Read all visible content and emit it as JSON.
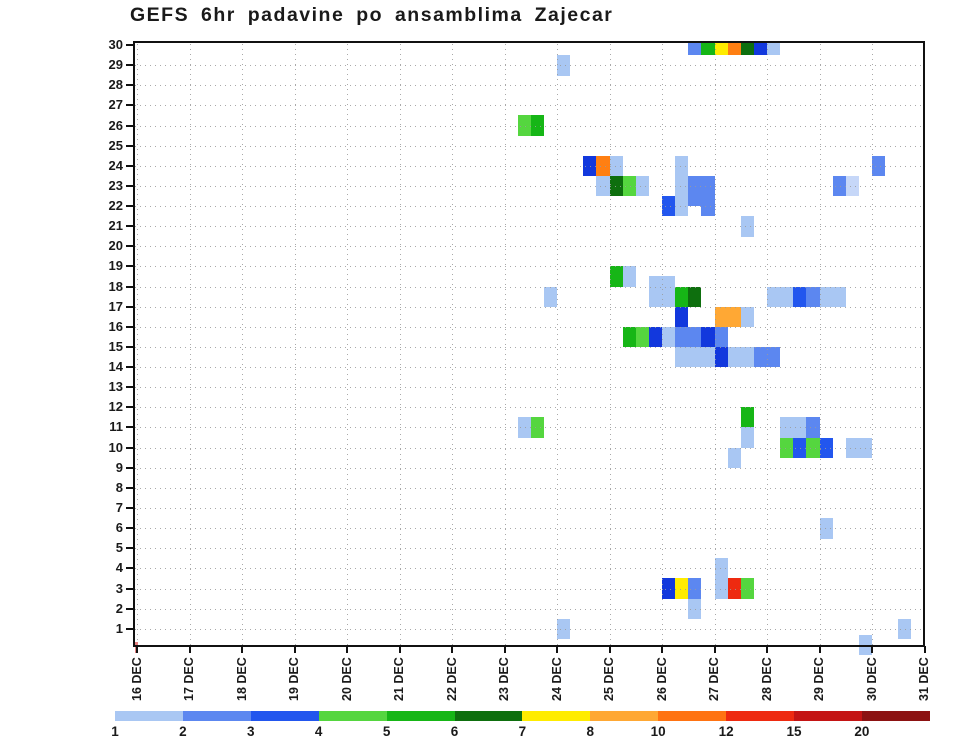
{
  "title": "GEFS 6hr padavine po ansamblima Zajecar",
  "chart_data": {
    "type": "heatmap",
    "title": "GEFS 6hr padavine po ansamblima Zajecar",
    "x_axis": {
      "labels": [
        "16 DEC",
        "17 DEC",
        "18 DEC",
        "19 DEC",
        "20 DEC",
        "21 DEC",
        "22 DEC",
        "23 DEC",
        "24 DEC",
        "25 DEC",
        "26 DEC",
        "27 DEC",
        "28 DEC",
        "29 DEC",
        "30 DEC",
        "31 DEC"
      ],
      "slot_hours": 6,
      "slots_per_day": 4
    },
    "y_axis": {
      "meaning": "ensemble member",
      "tick_labels": [
        "1",
        "2",
        "3",
        "4",
        "5",
        "6",
        "7",
        "8",
        "9",
        "10",
        "11",
        "12",
        "13",
        "14",
        "15",
        "16",
        "17",
        "18",
        "19",
        "20",
        "21",
        "22",
        "23",
        "24",
        "25",
        "26",
        "27",
        "28",
        "29",
        "30"
      ],
      "range": [
        1,
        30
      ]
    },
    "grid": "dotted",
    "legend_position": "bottom",
    "colorbar": {
      "labels": [
        "1",
        "2",
        "3",
        "4",
        "5",
        "6",
        "7",
        "8",
        "10",
        "12",
        "15",
        "20"
      ],
      "colors": [
        "#a9c7f3",
        "#5c87f0",
        "#2256ee",
        "#55d63f",
        "#16b616",
        "#0e6f0e",
        "#ffec00",
        "#ffa834",
        "#ff7312",
        "#ee2a10",
        "#c41414",
        "#8c1212"
      ]
    },
    "palette": {
      "lb": "#a9c7f3",
      "pb": "#c6d7f8",
      "mb": "#5c87f0",
      "b": "#2256ee",
      "db": "#1238dd",
      "lg": "#55d63f",
      "g": "#16b616",
      "dg": "#0e6f0e",
      "y": "#ffec00",
      "o": "#ffa834",
      "o2": "#ff7f12",
      "r": "#ee2a10"
    },
    "cells_format": [
      "member_row",
      "six_hour_slot_from_16DEC00",
      "palette_key"
    ],
    "cells": [
      [
        30,
        42,
        "mb"
      ],
      [
        30,
        43,
        "g"
      ],
      [
        30,
        44,
        "y"
      ],
      [
        30,
        45,
        "o2"
      ],
      [
        30,
        46,
        "dg"
      ],
      [
        30,
        47,
        "db"
      ],
      [
        30,
        48,
        "lb"
      ],
      [
        29,
        32,
        "lb"
      ],
      [
        26,
        29,
        "lg"
      ],
      [
        26,
        30,
        "g"
      ],
      [
        24,
        34,
        "db"
      ],
      [
        24,
        35,
        "o2"
      ],
      [
        24,
        36,
        "lb"
      ],
      [
        24,
        41,
        "lb"
      ],
      [
        24,
        56,
        "mb"
      ],
      [
        23,
        35,
        "lb"
      ],
      [
        23,
        36,
        "dg"
      ],
      [
        23,
        37,
        "lg"
      ],
      [
        23,
        38,
        "lb"
      ],
      [
        23,
        41,
        "lb"
      ],
      [
        23,
        42,
        "mb"
      ],
      [
        23,
        43,
        "mb"
      ],
      [
        23,
        53,
        "mb"
      ],
      [
        23,
        54,
        "pb"
      ],
      [
        22.5,
        42,
        "mb"
      ],
      [
        22.5,
        43,
        "mb"
      ],
      [
        22,
        40,
        "b"
      ],
      [
        22,
        41,
        "lb"
      ],
      [
        22,
        43,
        "mb"
      ],
      [
        21,
        46,
        "lb"
      ],
      [
        18.5,
        36,
        "g"
      ],
      [
        18.5,
        37,
        "lb"
      ],
      [
        18,
        39,
        "lb"
      ],
      [
        18,
        40,
        "lb"
      ],
      [
        17.5,
        31,
        "lb"
      ],
      [
        17.5,
        39,
        "lb"
      ],
      [
        17.5,
        40,
        "lb"
      ],
      [
        17.5,
        41,
        "g"
      ],
      [
        17.5,
        42,
        "dg"
      ],
      [
        17.5,
        48,
        "lb"
      ],
      [
        17.5,
        49,
        "lb"
      ],
      [
        17.5,
        50,
        "b"
      ],
      [
        17.5,
        51,
        "mb"
      ],
      [
        17.5,
        52,
        "lb"
      ],
      [
        17.5,
        53,
        "lb"
      ],
      [
        16.5,
        41,
        "db"
      ],
      [
        16.5,
        44,
        "o"
      ],
      [
        16.5,
        45,
        "o"
      ],
      [
        16.5,
        46,
        "lb"
      ],
      [
        15.5,
        37,
        "g"
      ],
      [
        15.5,
        38,
        "lg"
      ],
      [
        15.5,
        39,
        "db"
      ],
      [
        15.5,
        40,
        "lb"
      ],
      [
        15.5,
        41,
        "mb"
      ],
      [
        15.5,
        42,
        "mb"
      ],
      [
        15.5,
        43,
        "db"
      ],
      [
        15.5,
        44,
        "mb"
      ],
      [
        14.5,
        41,
        "lb"
      ],
      [
        14.5,
        42,
        "lb"
      ],
      [
        14.5,
        43,
        "lb"
      ],
      [
        14.5,
        44,
        "db"
      ],
      [
        14.5,
        45,
        "lb"
      ],
      [
        14.5,
        46,
        "lb"
      ],
      [
        14.5,
        47,
        "mb"
      ],
      [
        14.5,
        48,
        "mb"
      ],
      [
        11.5,
        46,
        "g"
      ],
      [
        11,
        29,
        "lb"
      ],
      [
        11,
        30,
        "lg"
      ],
      [
        11,
        49,
        "lb"
      ],
      [
        11,
        50,
        "lb"
      ],
      [
        11,
        51,
        "mb"
      ],
      [
        10.5,
        46,
        "lb"
      ],
      [
        10,
        49,
        "lg"
      ],
      [
        10,
        50,
        "b"
      ],
      [
        10,
        51,
        "lg"
      ],
      [
        10,
        52,
        "b"
      ],
      [
        10,
        54,
        "lb"
      ],
      [
        10,
        55,
        "lb"
      ],
      [
        9.5,
        45,
        "lb"
      ],
      [
        6,
        52,
        "lb"
      ],
      [
        4,
        44,
        "lb"
      ],
      [
        3,
        40,
        "db"
      ],
      [
        3,
        41,
        "y"
      ],
      [
        3,
        42,
        "mb"
      ],
      [
        3,
        44,
        "lb"
      ],
      [
        3,
        45,
        "r"
      ],
      [
        3,
        46,
        "lg"
      ],
      [
        2,
        42,
        "lb"
      ],
      [
        1,
        32,
        "lb"
      ],
      [
        1,
        58,
        "lb"
      ],
      [
        0.2,
        55,
        "lb"
      ]
    ]
  }
}
